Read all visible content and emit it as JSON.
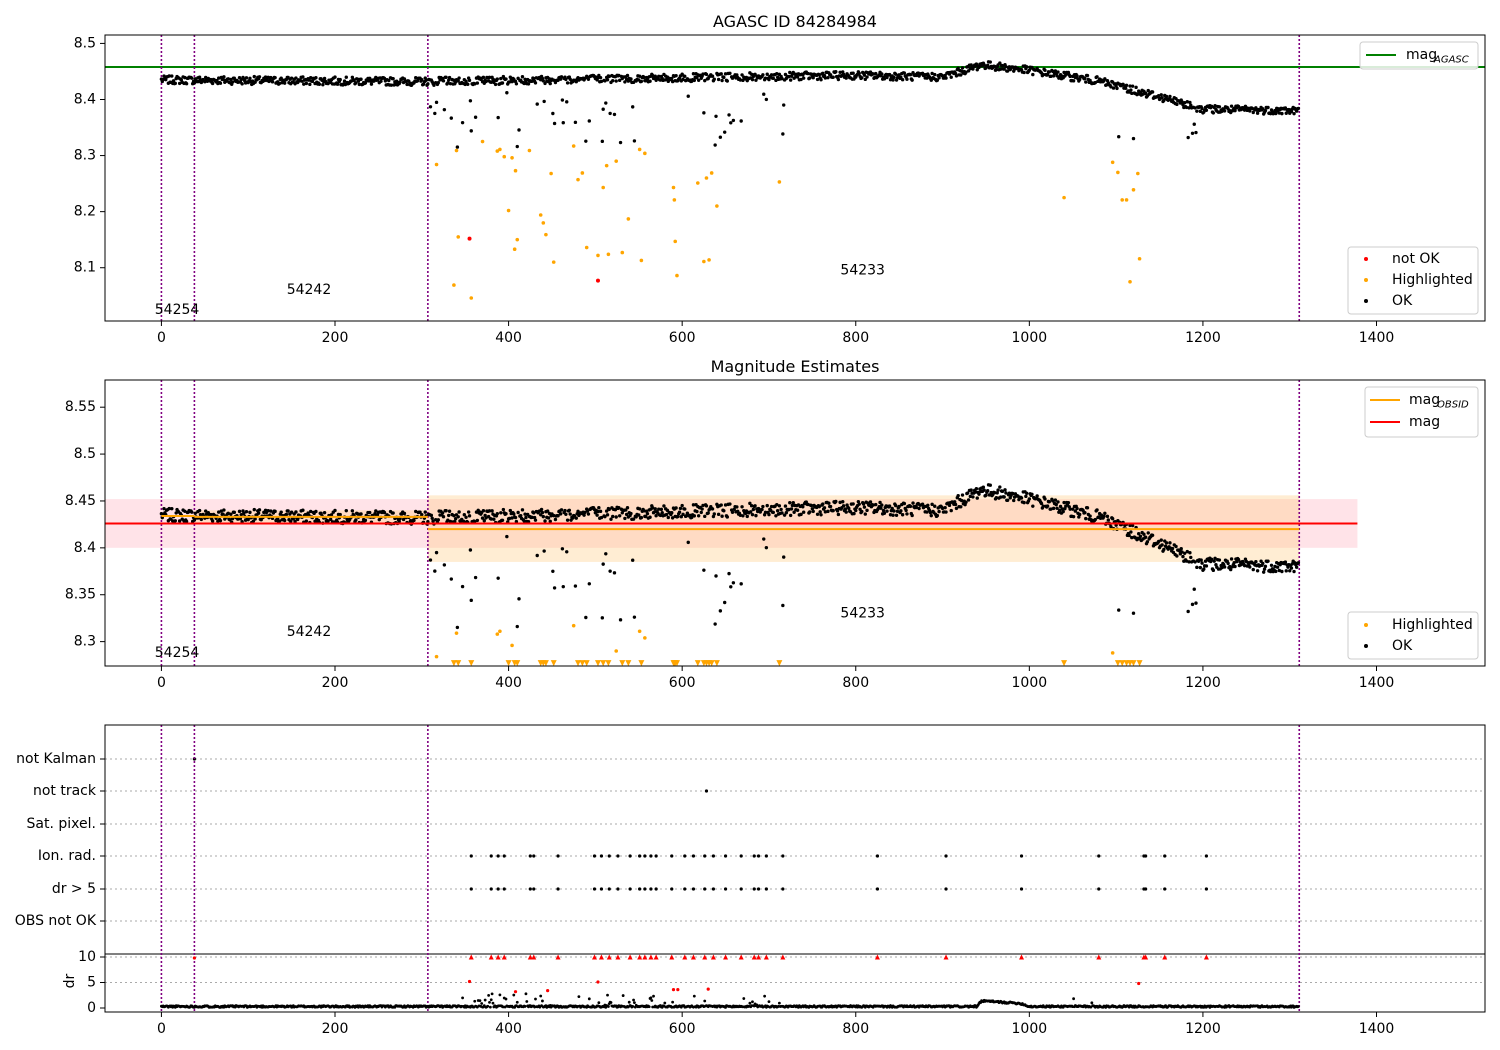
{
  "chart_data": [
    {
      "type": "scatter",
      "title": "AGASC ID 84284984",
      "xlim": [
        -65,
        1525
      ],
      "ylim": [
        8.005,
        8.515
      ],
      "x_ticks": [
        0,
        200,
        400,
        600,
        800,
        1000,
        1200,
        1400
      ],
      "y_ticks": [
        8.1,
        8.2,
        8.3,
        8.4,
        8.5
      ],
      "grid": false,
      "obsid_boundaries": [
        0,
        38,
        307,
        1311
      ],
      "obsid_labels": [
        {
          "text": "54254",
          "x": 18,
          "y": 8.025
        },
        {
          "text": "54242",
          "x": 170,
          "y": 8.06
        },
        {
          "text": "54233",
          "x": 808,
          "y": 8.095
        }
      ],
      "hlines": [
        {
          "name": "mag_AGASC",
          "y": 8.458,
          "color": "#008000"
        }
      ],
      "legend_top": {
        "position": "top-right",
        "entries": [
          {
            "label": "mag",
            "sub": "AGASC",
            "color": "#008000",
            "kind": "line"
          }
        ]
      },
      "legend_bottom": {
        "position": "lower-right",
        "entries": [
          {
            "label": "not OK",
            "color": "#ff0000",
            "kind": "dot"
          },
          {
            "label": "Highlighted",
            "color": "#ffa500",
            "kind": "dot"
          },
          {
            "label": "OK",
            "color": "#000000",
            "kind": "dot"
          }
        ]
      },
      "series": [
        {
          "name": "OK",
          "color": "#000000",
          "trend": [
            [
              0,
              8.435
            ],
            [
              300,
              8.432
            ],
            [
              700,
              8.441
            ],
            [
              800,
              8.443
            ],
            [
              900,
              8.44
            ],
            [
              945,
              8.462
            ],
            [
              1000,
              8.452
            ],
            [
              1080,
              8.433
            ],
            [
              1150,
              8.405
            ],
            [
              1200,
              8.383
            ],
            [
              1310,
              8.38
            ]
          ]
        },
        {
          "name": "not OK",
          "color": "#ff0000",
          "points": [
            [
              355,
              8.152
            ],
            [
              503,
              8.077
            ]
          ]
        },
        {
          "name": "Highlighted",
          "color": "#ffa500",
          "points": [
            [
              317,
              8.284
            ],
            [
              337,
              8.069
            ],
            [
              340,
              8.309
            ],
            [
              342,
              8.155
            ],
            [
              357,
              8.046
            ],
            [
              370,
              8.325
            ],
            [
              387,
              8.308
            ],
            [
              390,
              8.311
            ],
            [
              395,
              8.298
            ],
            [
              400,
              8.202
            ],
            [
              404,
              8.296
            ],
            [
              408,
              8.273
            ],
            [
              407,
              8.133
            ],
            [
              410,
              8.15
            ],
            [
              424,
              8.309
            ],
            [
              437,
              8.194
            ],
            [
              440,
              8.18
            ],
            [
              443,
              8.159
            ],
            [
              449,
              8.268
            ],
            [
              452,
              8.11
            ],
            [
              475,
              8.317
            ],
            [
              480,
              8.257
            ],
            [
              485,
              8.269
            ],
            [
              490,
              8.136
            ],
            [
              503,
              8.122
            ],
            [
              509,
              8.243
            ],
            [
              513,
              8.282
            ],
            [
              515,
              8.124
            ],
            [
              524,
              8.29
            ],
            [
              531,
              8.127
            ],
            [
              538,
              8.187
            ],
            [
              551,
              8.311
            ],
            [
              553,
              8.113
            ],
            [
              557,
              8.304
            ],
            [
              590,
              8.243
            ],
            [
              591,
              8.221
            ],
            [
              592,
              8.147
            ],
            [
              594,
              8.086
            ],
            [
              618,
              8.251
            ],
            [
              625,
              8.111
            ],
            [
              628,
              8.26
            ],
            [
              631,
              8.114
            ],
            [
              634,
              8.269
            ],
            [
              640,
              8.21
            ],
            [
              712,
              8.253
            ],
            [
              1040,
              8.225
            ],
            [
              1096,
              8.288
            ],
            [
              1102,
              8.27
            ],
            [
              1107,
              8.221
            ],
            [
              1112,
              8.221
            ],
            [
              1116,
              8.075
            ],
            [
              1120,
              8.239
            ],
            [
              1125,
              8.268
            ],
            [
              1127,
              8.116
            ]
          ]
        }
      ]
    },
    {
      "type": "scatter",
      "title": "Magnitude Estimates",
      "xlim": [
        -65,
        1525
      ],
      "ylim": [
        8.274,
        8.579
      ],
      "x_ticks": [
        0,
        200,
        400,
        600,
        800,
        1000,
        1200,
        1400
      ],
      "y_ticks": [
        8.3,
        8.35,
        8.4,
        8.45,
        8.5,
        8.55
      ],
      "grid": false,
      "obsid_boundaries": [
        0,
        38,
        307,
        1311
      ],
      "obsid_labels": [
        {
          "text": "54254",
          "x": 18,
          "y": 8.288
        },
        {
          "text": "54242",
          "x": 170,
          "y": 8.31
        },
        {
          "text": "54233",
          "x": 808,
          "y": 8.33
        }
      ],
      "bands": [
        {
          "name": "mag_band",
          "x": [
            -65,
            1378
          ],
          "y": [
            8.4,
            8.452
          ],
          "color": "#ffc0cb",
          "opacity": 0.45
        },
        {
          "name": "mag_OBSID_54233_band",
          "x": [
            307,
            1311
          ],
          "y": [
            8.385,
            8.456
          ],
          "color": "#ffcc80",
          "opacity": 0.35
        },
        {
          "name": "mag_OBSID_54242_band",
          "x": [
            38,
            307
          ],
          "y": [
            8.427,
            8.44
          ],
          "color": "#ffcc80",
          "opacity": 0.35
        }
      ],
      "segments": [
        {
          "name": "mag_OBSID_54254",
          "x": [
            0,
            38
          ],
          "y": 8.434,
          "color": "#ffa500"
        },
        {
          "name": "mag_OBSID_54242",
          "x": [
            38,
            307
          ],
          "y": 8.433,
          "color": "#ffa500"
        },
        {
          "name": "mag_OBSID_54233",
          "x": [
            307,
            1311
          ],
          "y": 8.42,
          "color": "#ffa500"
        },
        {
          "name": "mag",
          "x": [
            -65,
            1378
          ],
          "y": 8.426,
          "color": "#ff0000"
        }
      ],
      "legend_top": {
        "position": "top-right",
        "entries": [
          {
            "label": "mag",
            "sub": "OBSID",
            "color": "#ffa500",
            "kind": "line"
          },
          {
            "label": "mag",
            "sub": "",
            "color": "#ff0000",
            "kind": "line"
          }
        ]
      },
      "legend_bottom": {
        "position": "lower-right",
        "entries": [
          {
            "label": "Highlighted",
            "color": "#ffa500",
            "kind": "dot"
          },
          {
            "label": "OK",
            "color": "#000000",
            "kind": "dot"
          }
        ]
      },
      "series": [
        {
          "name": "OK",
          "color": "#000000",
          "trend_ref": "same as panel 1"
        },
        {
          "name": "Highlighted",
          "color": "#ffa500",
          "points": [
            [
              317,
              8.284
            ],
            [
              340,
              8.309
            ],
            [
              387,
              8.308
            ],
            [
              390,
              8.311
            ],
            [
              404,
              8.296
            ],
            [
              475,
              8.317
            ],
            [
              524,
              8.29
            ],
            [
              551,
              8.311
            ],
            [
              557,
              8.304
            ],
            [
              1096,
              8.288
            ]
          ]
        },
        {
          "name": "Highlighted (below axis)",
          "color": "#ffa500",
          "marker": "triangle-down",
          "x": [
            337,
            342,
            357,
            400,
            407,
            410,
            437,
            440,
            443,
            452,
            480,
            485,
            490,
            503,
            509,
            515,
            531,
            538,
            553,
            590,
            591,
            592,
            594,
            618,
            625,
            628,
            631,
            634,
            640,
            712,
            1040,
            1102,
            1107,
            1112,
            1116,
            1120,
            1127
          ]
        }
      ]
    },
    {
      "type": "scatter",
      "title": "",
      "xlim": [
        -65,
        1525
      ],
      "x_ticks": [
        0,
        200,
        400,
        600,
        800,
        1000,
        1200,
        1400
      ],
      "obsid_boundaries": [
        0,
        38,
        307,
        1311
      ],
      "flag_rows": [
        "not Kalman",
        "not track",
        "Sat. pixel.",
        "Ion. rad.",
        "dr > 5",
        "OBS not OK"
      ],
      "flag_points": {
        "not Kalman": [
          38
        ],
        "not track": [
          628
        ],
        "Sat. pixel.": [],
        "Ion. rad.": [
          357,
          380,
          388,
          395,
          425,
          429,
          457,
          499,
          507,
          516,
          526,
          540,
          551,
          557,
          564,
          570,
          588,
          603,
          613,
          626,
          636,
          650,
          668,
          683,
          688,
          697,
          716,
          825,
          904,
          991,
          1080,
          1132,
          1134,
          1156,
          1204
        ],
        "dr > 5": [
          357,
          380,
          388,
          395,
          425,
          429,
          457,
          499,
          507,
          516,
          526,
          540,
          551,
          557,
          564,
          570,
          588,
          603,
          613,
          626,
          636,
          650,
          668,
          683,
          688,
          697,
          716,
          825,
          904,
          991,
          1080,
          1132,
          1134,
          1156,
          1204
        ],
        "OBS not OK": []
      },
      "dr": {
        "ylabel": "dr",
        "ylim": [
          0,
          10
        ],
        "y_ticks": [
          0,
          5,
          10
        ],
        "clip_value": 10,
        "clipped_x": [
          357,
          380,
          388,
          395,
          425,
          429,
          457,
          499,
          507,
          516,
          526,
          540,
          551,
          557,
          564,
          570,
          588,
          603,
          613,
          626,
          636,
          650,
          668,
          683,
          688,
          697,
          716,
          825,
          904,
          991,
          1080,
          1132,
          1134,
          1156,
          1204
        ],
        "baseline": [
          [
            0,
            0.3
          ],
          [
            940,
            0.3
          ],
          [
            945,
            1.4
          ],
          [
            990,
            0.9
          ],
          [
            1000,
            0.3
          ],
          [
            1310,
            0.3
          ]
        ],
        "outliers": [
          [
            355,
            5.2
          ],
          [
            408,
            3.2
          ],
          [
            445,
            3.4
          ],
          [
            503,
            5.1
          ],
          [
            590,
            3.6
          ],
          [
            595,
            3.6
          ],
          [
            630,
            3.7
          ],
          [
            1126,
            4.8
          ]
        ]
      }
    }
  ]
}
